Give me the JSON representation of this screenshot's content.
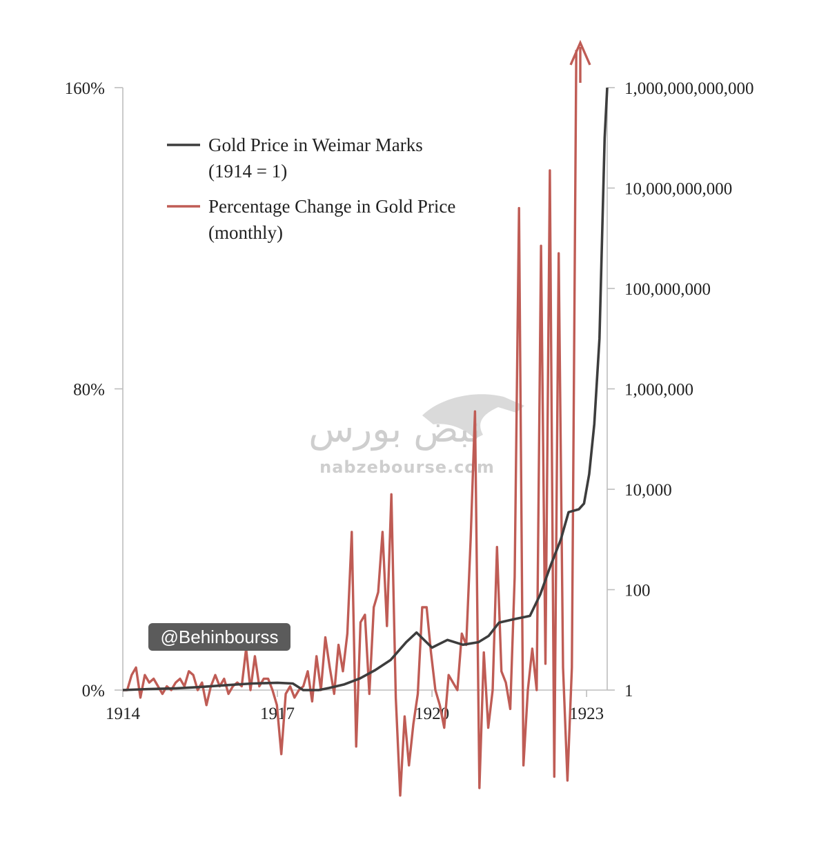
{
  "chart_data": {
    "type": "line",
    "x_axis": {
      "ticks": [
        "1914",
        "1917",
        "1920",
        "1923"
      ],
      "range": [
        1914,
        1923.4
      ]
    },
    "y_left": {
      "ticks": [
        "0%",
        "80%",
        "160%"
      ],
      "range": [
        0,
        160
      ]
    },
    "y_right": {
      "scale": "log",
      "ticks": [
        "1",
        "100",
        "10,000",
        "1,000,000",
        "100,000,000",
        "10,000,000,000",
        "1,000,000,000,000"
      ],
      "range": [
        1,
        1000000000000
      ]
    },
    "legend": {
      "placement": "top-left"
    },
    "series": [
      {
        "name": "Gold Price in Weimar Marks",
        "name_line2": "(1914 = 1)",
        "axis": "right",
        "color": "#3d3d3d",
        "points": [
          [
            1914.0,
            1
          ],
          [
            1914.5,
            1.05
          ],
          [
            1915.0,
            1.08
          ],
          [
            1915.5,
            1.15
          ],
          [
            1916.0,
            1.25
          ],
          [
            1916.5,
            1.35
          ],
          [
            1917.0,
            1.4
          ],
          [
            1917.3,
            1.35
          ],
          [
            1917.5,
            1.0
          ],
          [
            1917.8,
            1.0
          ],
          [
            1918.0,
            1.1
          ],
          [
            1918.3,
            1.3
          ],
          [
            1918.6,
            1.7
          ],
          [
            1918.9,
            2.5
          ],
          [
            1919.2,
            4
          ],
          [
            1919.5,
            9
          ],
          [
            1919.7,
            14
          ],
          [
            1920.0,
            7
          ],
          [
            1920.3,
            10
          ],
          [
            1920.6,
            8
          ],
          [
            1920.9,
            9
          ],
          [
            1921.1,
            12
          ],
          [
            1921.3,
            22
          ],
          [
            1921.6,
            26
          ],
          [
            1921.9,
            30
          ],
          [
            1922.1,
            80
          ],
          [
            1922.3,
            300
          ],
          [
            1922.5,
            1000
          ],
          [
            1922.65,
            3500
          ],
          [
            1922.85,
            4000
          ],
          [
            1922.95,
            5200
          ],
          [
            1923.05,
            20000
          ],
          [
            1923.15,
            200000
          ],
          [
            1923.25,
            10000000
          ],
          [
            1923.35,
            100000000000
          ],
          [
            1923.4,
            1000000000000
          ]
        ]
      },
      {
        "name": "Percentage Change in Gold Price",
        "name_line2": "(monthly)",
        "axis": "left",
        "color": "#bf5c55",
        "values": [
          0,
          0,
          4,
          6,
          -2,
          4,
          2,
          3,
          1,
          -1,
          1,
          0,
          2,
          3,
          1,
          5,
          4,
          0,
          2,
          -4,
          1,
          4,
          1,
          3,
          -1,
          1,
          2,
          1,
          11,
          0,
          9,
          1,
          3,
          3,
          0,
          -4,
          -17,
          -1,
          1,
          -2,
          0,
          1,
          5,
          -3,
          9,
          0,
          14,
          6,
          -1,
          12,
          5,
          15,
          42,
          -15,
          18,
          20,
          -1,
          22,
          26,
          42,
          17,
          52,
          -2,
          -28,
          -7,
          -20,
          -9,
          -1,
          22,
          22,
          10,
          0,
          -4,
          -10,
          4,
          2,
          0,
          15,
          12,
          40,
          74,
          -26,
          10,
          -10,
          0,
          38,
          5,
          2,
          -5,
          30,
          128,
          -20,
          0,
          11,
          0,
          118,
          7,
          138,
          -23,
          116,
          6,
          -24,
          6,
          170
        ]
      }
    ],
    "arrow_annotation": "red arrow indicating the percentage change continues above the 160% axis limit"
  },
  "watermark": {
    "arabic": "نبض بورس",
    "url": "nabzebourse.com"
  },
  "handle": "@Behinbourss"
}
